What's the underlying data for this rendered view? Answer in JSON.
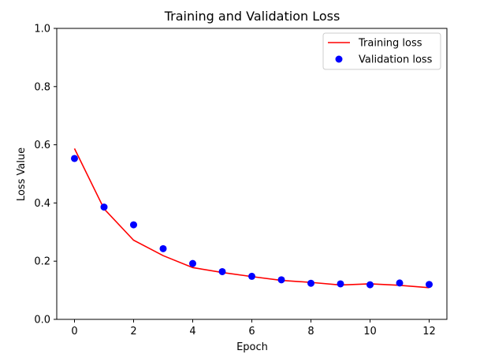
{
  "chart_data": {
    "type": "line",
    "title": "Training and Validation Loss",
    "xlabel": "Epoch",
    "ylabel": "Loss Value",
    "xlim": [
      -0.6,
      12.6
    ],
    "ylim": [
      0.0,
      1.0
    ],
    "x_ticks": [
      0,
      2,
      4,
      6,
      8,
      10,
      12
    ],
    "x_tick_labels": [
      "0",
      "2",
      "4",
      "6",
      "8",
      "10",
      "12"
    ],
    "y_ticks": [
      0.0,
      0.2,
      0.4,
      0.6,
      0.8,
      1.0
    ],
    "y_tick_labels": [
      "0.0",
      "0.2",
      "0.4",
      "0.6",
      "0.8",
      "1.0"
    ],
    "grid": false,
    "legend_position": "top-right",
    "x": [
      0,
      1,
      2,
      3,
      4,
      5,
      6,
      7,
      8,
      9,
      10,
      11,
      12
    ],
    "series": [
      {
        "name": "Training loss",
        "style": "line",
        "color": "#ff0000",
        "values": [
          0.587,
          0.38,
          0.272,
          0.219,
          0.178,
          0.161,
          0.147,
          0.134,
          0.127,
          0.118,
          0.122,
          0.117,
          0.109
        ]
      },
      {
        "name": "Validation loss",
        "style": "marker",
        "color": "#0000ff",
        "values": [
          0.553,
          0.386,
          0.325,
          0.243,
          0.192,
          0.164,
          0.148,
          0.136,
          0.124,
          0.122,
          0.119,
          0.125,
          0.12
        ]
      }
    ]
  }
}
